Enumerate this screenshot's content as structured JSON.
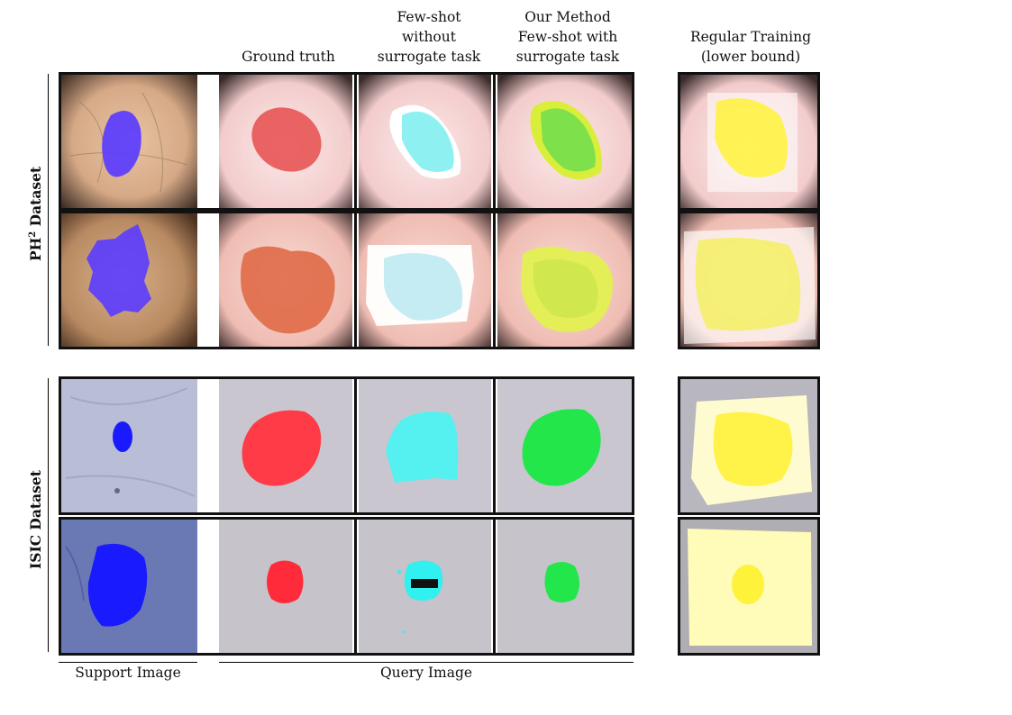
{
  "headers": {
    "ground_truth": "Ground truth",
    "few_shot_without": [
      "Few-shot",
      "without",
      "surrogate task"
    ],
    "our_method": [
      "Our Method",
      "Few-shot with",
      "surrogate task"
    ],
    "regular_training": [
      "Regular Training",
      "(lower bound)"
    ]
  },
  "row_labels": {
    "ph2": "PH",
    "ph2_sup": "2",
    "ph2_rest": " Dataset",
    "isic": "ISIC Dataset"
  },
  "footer": {
    "support": "Support Image",
    "query": "Query Image"
  },
  "colors": {
    "support_mask": "#5a3cff",
    "isic_support_mask": "#1a1aff",
    "ground_truth": "#ff3b47",
    "few_shot_without": "#55f0f0",
    "our_method": "#22e64a",
    "regular_training": "#fff23a"
  }
}
